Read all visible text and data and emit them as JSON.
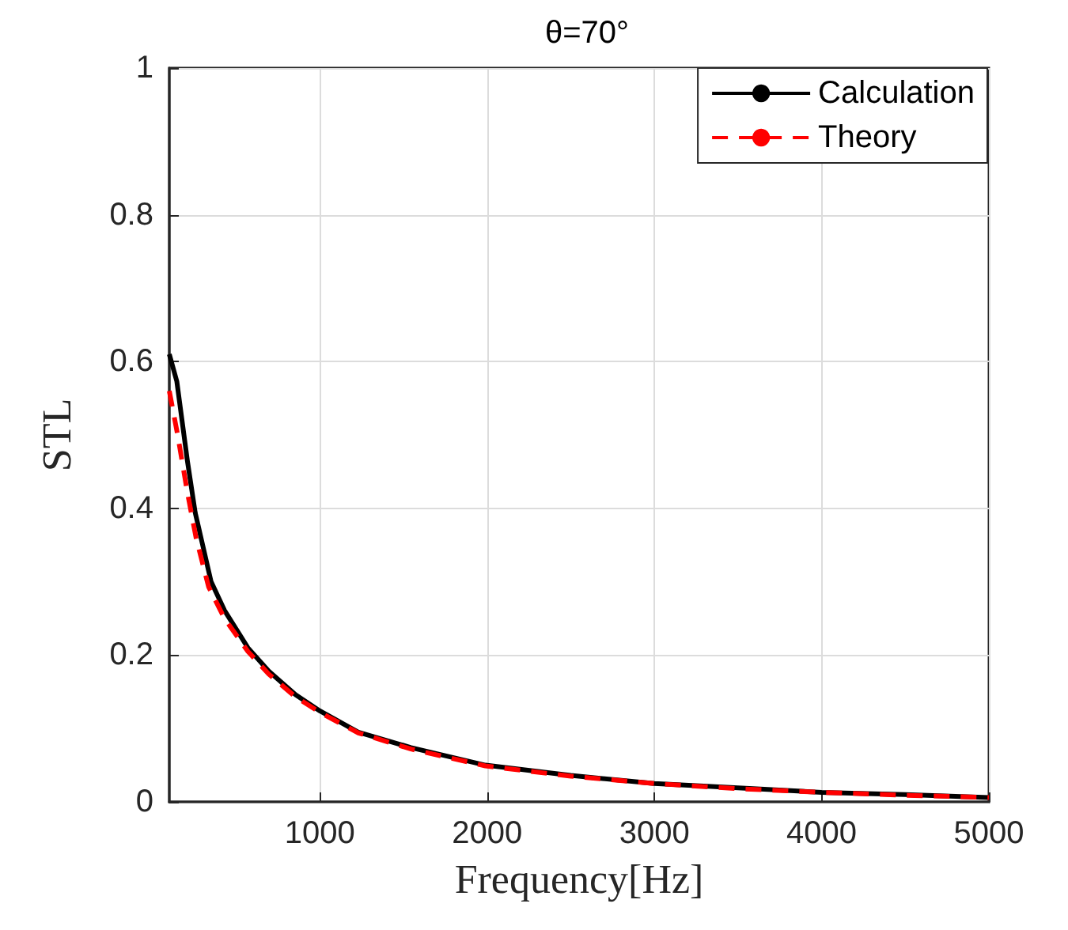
{
  "chart_data": {
    "type": "line",
    "title": "θ=70°",
    "xlabel": "Frequency[Hz]",
    "ylabel": "STL",
    "xlim": [
      100,
      5000
    ],
    "xticks": [
      1000,
      2000,
      3000,
      4000,
      5000
    ],
    "ylim": [
      0,
      1
    ],
    "yticks": [
      0,
      0.2,
      0.4,
      0.6,
      0.8,
      1
    ],
    "grid": true,
    "legend": "top right",
    "series": [
      {
        "name": "Calculation",
        "color": "#000000",
        "line_style": "solid",
        "x": [
          100,
          145,
          208,
          255,
          350,
          430,
          570,
          695,
          855,
          1000,
          1230,
          1545,
          1990,
          2500,
          3000,
          3500,
          4000,
          4500,
          5000
        ],
        "values": [
          0.61,
          0.573,
          0.465,
          0.394,
          0.3,
          0.261,
          0.21,
          0.178,
          0.146,
          0.124,
          0.095,
          0.074,
          0.05,
          0.036,
          0.025,
          0.019,
          0.013,
          0.01,
          0.006
        ]
      },
      {
        "name": "Theory",
        "color": "#ff0000",
        "line_style": "dashed",
        "x": [
          100,
          150,
          208,
          260,
          335,
          430,
          570,
          695,
          855,
          1000,
          1230,
          1545,
          1990,
          2500,
          3000,
          3500,
          4000,
          4500,
          5000
        ],
        "values": [
          0.56,
          0.5,
          0.422,
          0.36,
          0.293,
          0.25,
          0.205,
          0.174,
          0.143,
          0.122,
          0.094,
          0.072,
          0.049,
          0.035,
          0.025,
          0.018,
          0.013,
          0.009,
          0.006
        ]
      }
    ]
  }
}
